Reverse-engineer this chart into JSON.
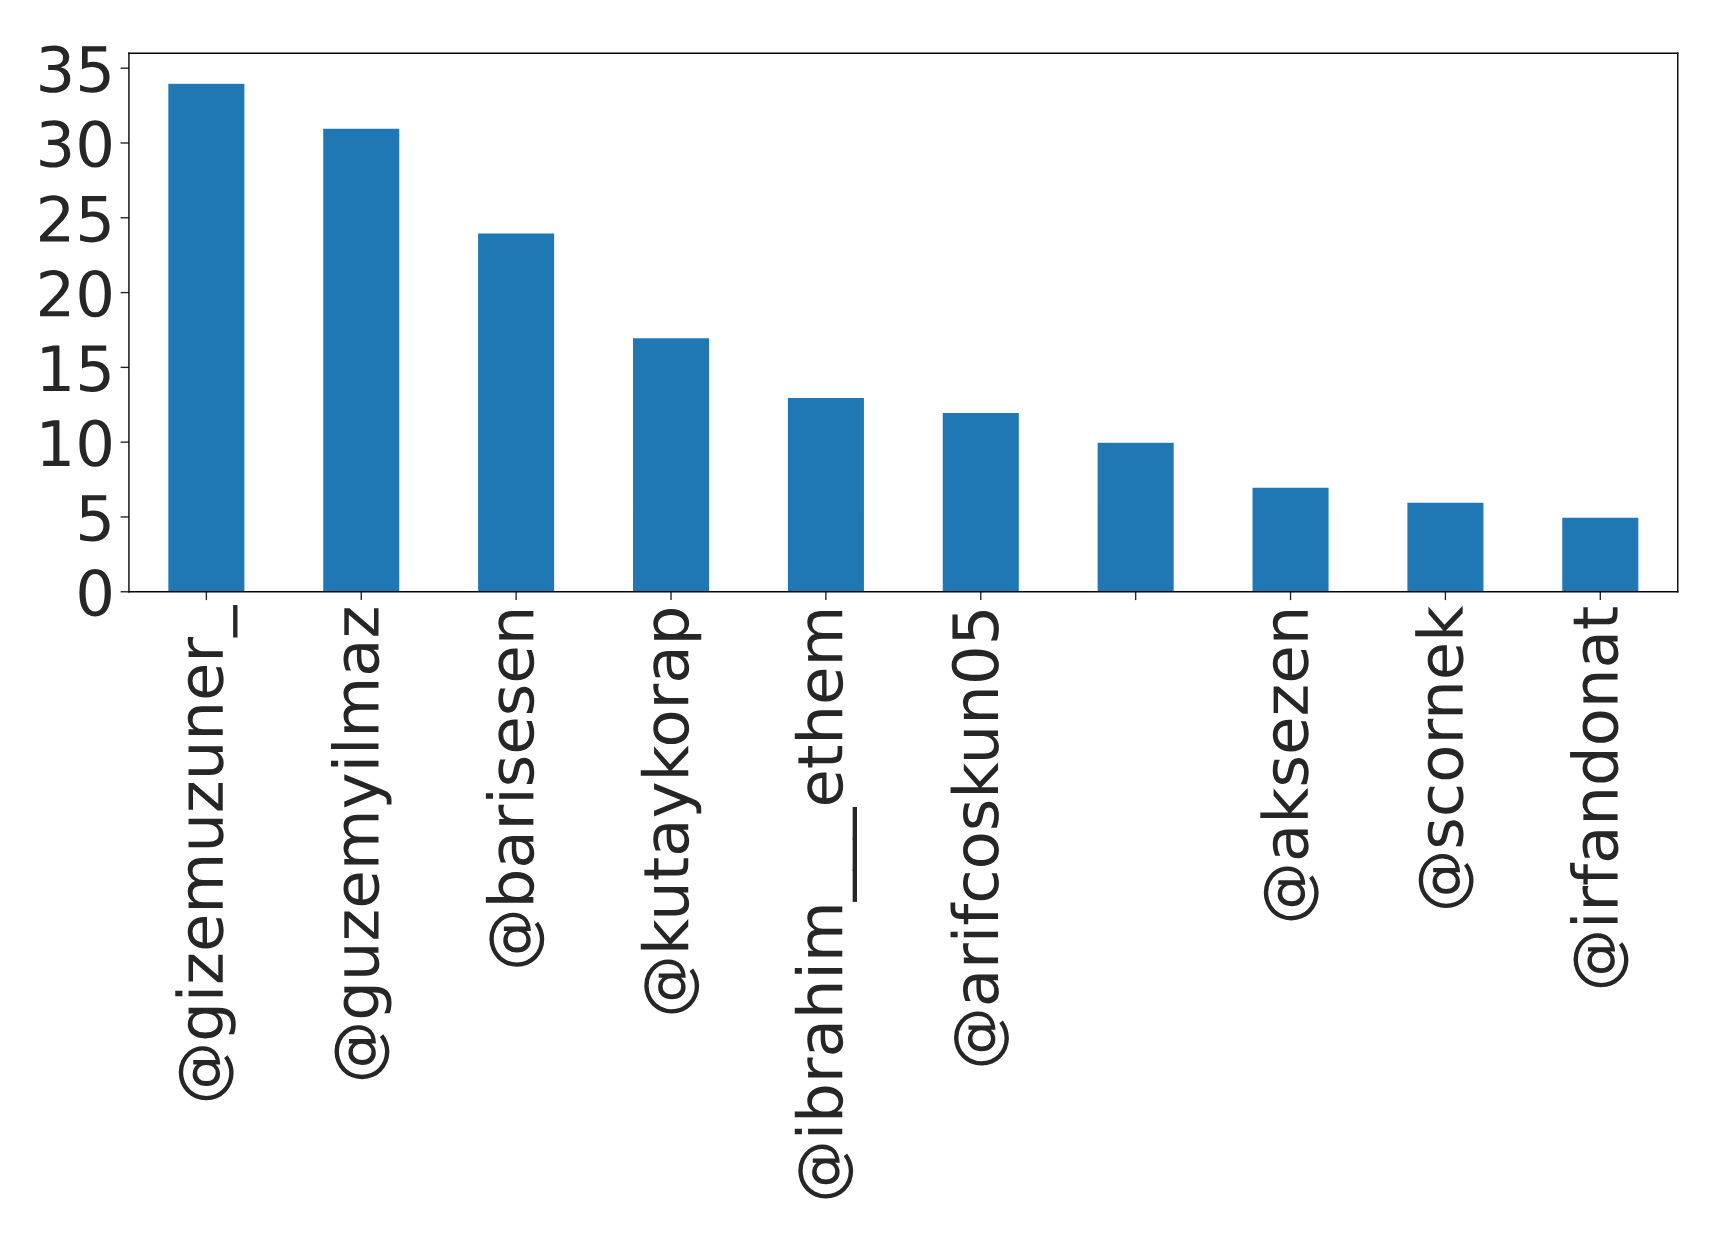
{
  "chart_data": {
    "type": "bar",
    "categories": [
      "@gizemuzuner_",
      "@guzemyilmaz",
      "@barisesen",
      "@kutaykorap",
      "@ibrahim___ethem",
      "@arifcoskun05",
      null,
      "@aksezen",
      "@scornek",
      "@irfandonat"
    ],
    "values": [
      34,
      31,
      24,
      17,
      13,
      12,
      10,
      7,
      6,
      5
    ],
    "color": "#1f77b4",
    "ylim": [
      0,
      36
    ],
    "yticks": [
      0,
      5,
      10,
      15,
      20,
      25,
      30,
      35
    ],
    "grid": false,
    "legend": false
  }
}
